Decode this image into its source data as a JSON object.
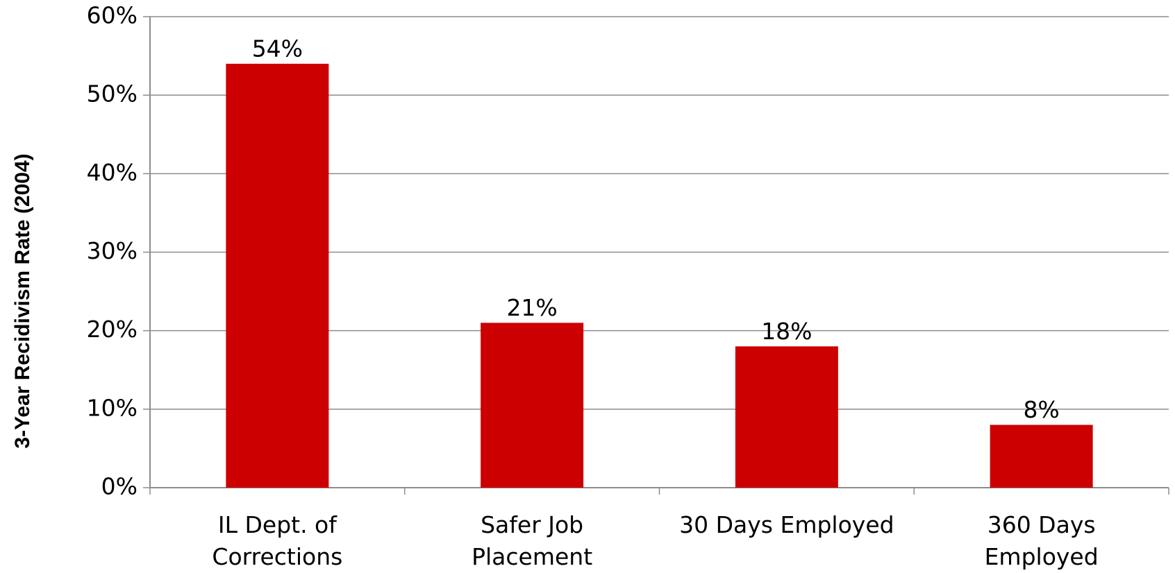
{
  "chart_data": {
    "type": "bar",
    "y_label": "3-Year Recidivism Rate (2004)",
    "categories": [
      "IL Dept. of\nCorrections",
      "Safer Job\nPlacement",
      "30 Days Employed",
      "360 Days\nEmployed"
    ],
    "values": [
      54,
      21,
      18,
      8
    ],
    "value_labels": [
      "54%",
      "21%",
      "18%",
      "8%"
    ],
    "color": "#cc0000",
    "ylim": [
      0,
      60
    ],
    "yticks": [
      {
        "value": 0,
        "label": "0%"
      },
      {
        "value": 10,
        "label": "10%"
      },
      {
        "value": 20,
        "label": "20%"
      },
      {
        "value": 30,
        "label": "30%"
      },
      {
        "value": 40,
        "label": "40%"
      },
      {
        "value": 50,
        "label": "50%"
      },
      {
        "value": 60,
        "label": "60%"
      }
    ],
    "grid": true
  }
}
